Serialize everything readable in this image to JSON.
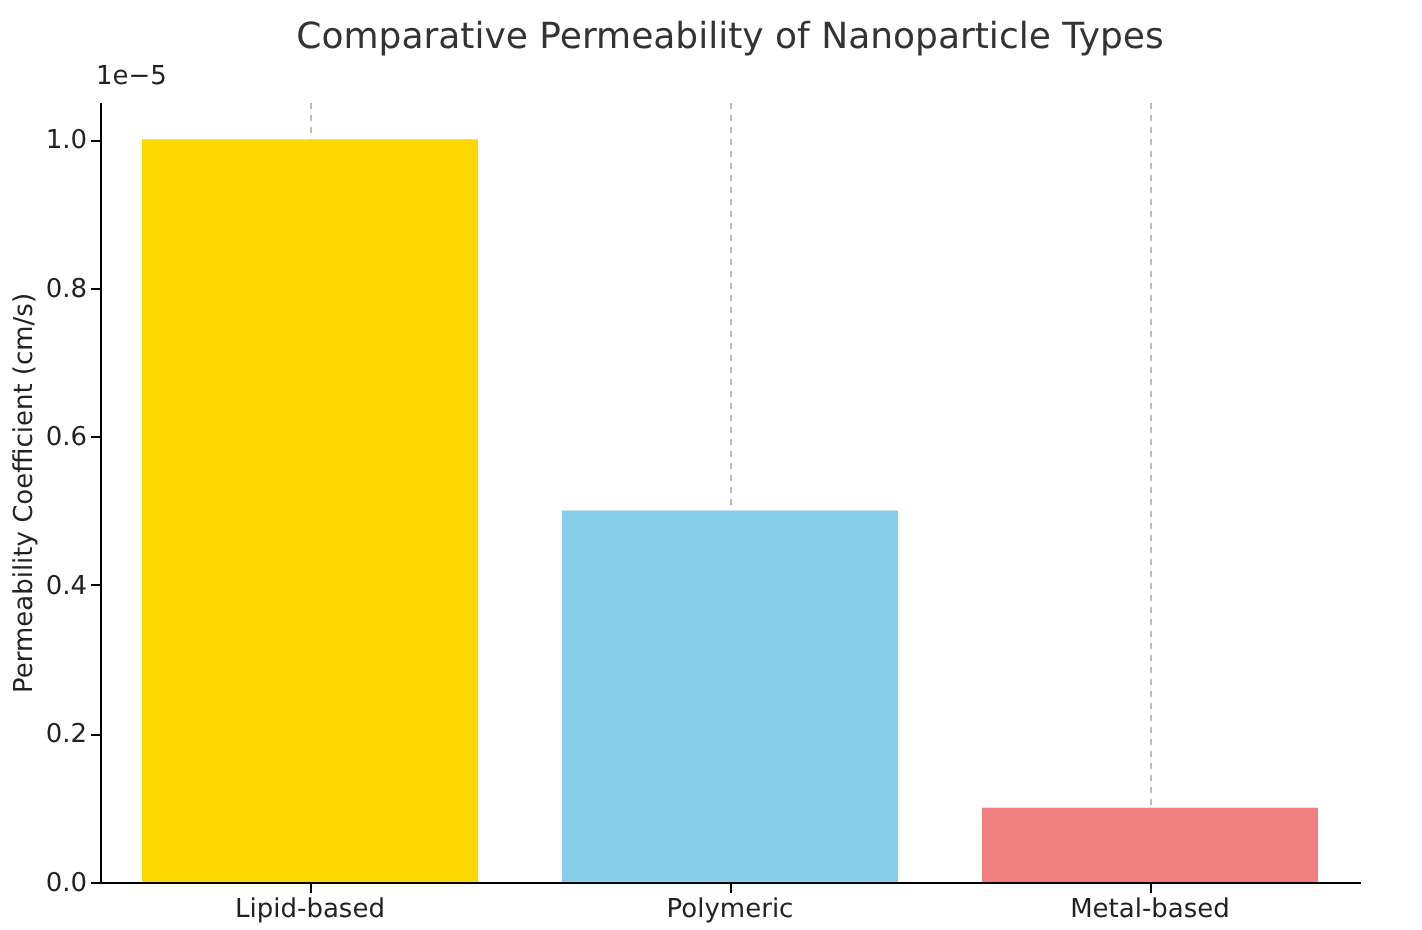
{
  "chart_data": {
    "type": "bar",
    "title": "Comparative Permeability of Nanoparticle Types",
    "ylabel": "Permeability Coefficient (cm/s)",
    "annotations": [
      "1e−5"
    ],
    "categories": [
      "Lipid-based",
      "Polymeric",
      "Metal-based"
    ],
    "values": [
      1.0,
      0.5,
      0.1
    ],
    "colors": [
      "#ffd700",
      "#87ceeb",
      "#f08080"
    ],
    "ylim": [
      0,
      1.05
    ],
    "yticks": [
      {
        "value": 0,
        "label": "0.0"
      },
      {
        "value": 0.2,
        "label": "0.2"
      },
      {
        "value": 0.4,
        "label": "0.4"
      },
      {
        "value": 0.6,
        "label": "0.6"
      },
      {
        "value": 0.8,
        "label": "0.8"
      },
      {
        "value": 1.0,
        "label": "1.0"
      }
    ],
    "grid": "x"
  }
}
